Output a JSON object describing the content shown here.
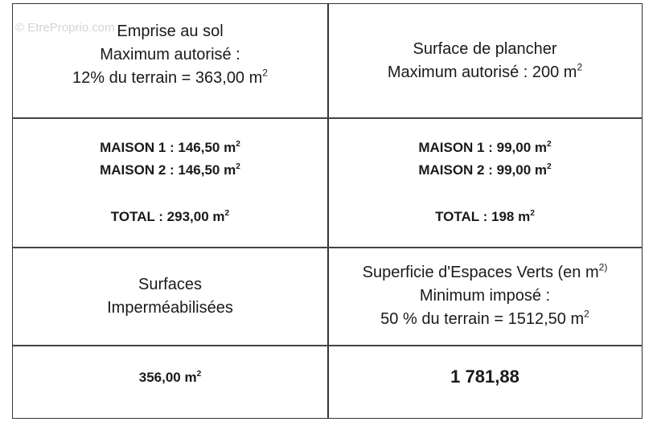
{
  "watermark": "© EtreProprio.com",
  "rows": [
    {
      "left": {
        "lines": [
          {
            "text": "Emprise au sol",
            "sup": ""
          },
          {
            "text": "Maximum autorisé :",
            "sup": ""
          },
          {
            "text": "12% du terrain = 363,00 m",
            "sup": "2"
          }
        ]
      },
      "right": {
        "lines": [
          {
            "text": "Surface de plancher",
            "sup": ""
          },
          {
            "text": "Maximum autorisé : 200 m",
            "sup": "2"
          }
        ]
      }
    },
    {
      "left": {
        "maison1": {
          "text": "MAISON 1 : 146,50 m",
          "sup": "2"
        },
        "maison2": {
          "text": "MAISON 2 : 146,50 m",
          "sup": "2"
        },
        "total": {
          "text": "TOTAL : 293,00 m",
          "sup": "2"
        }
      },
      "right": {
        "maison1": {
          "text": "MAISON 1 : 99,00 m",
          "sup": "2"
        },
        "maison2": {
          "text": "MAISON 2 : 99,00 m",
          "sup": "2"
        },
        "total": {
          "text": "TOTAL : 198 m",
          "sup": "2"
        }
      }
    },
    {
      "left": {
        "lines": [
          {
            "text": "Surfaces",
            "sup": ""
          },
          {
            "text": "Imperméabilisées",
            "sup": ""
          }
        ]
      },
      "right": {
        "lines": [
          {
            "text": "Superficie d'Espaces Verts (en m",
            "sup": "2)"
          },
          {
            "text": "Minimum imposé :",
            "sup": ""
          },
          {
            "text": "50 % du terrain = 1512,50 m",
            "sup": "2"
          }
        ]
      }
    },
    {
      "left": {
        "value": {
          "text": "356,00 m",
          "sup": "2"
        }
      },
      "right": {
        "value": {
          "text": "1 781,88",
          "sup": ""
        }
      }
    }
  ]
}
